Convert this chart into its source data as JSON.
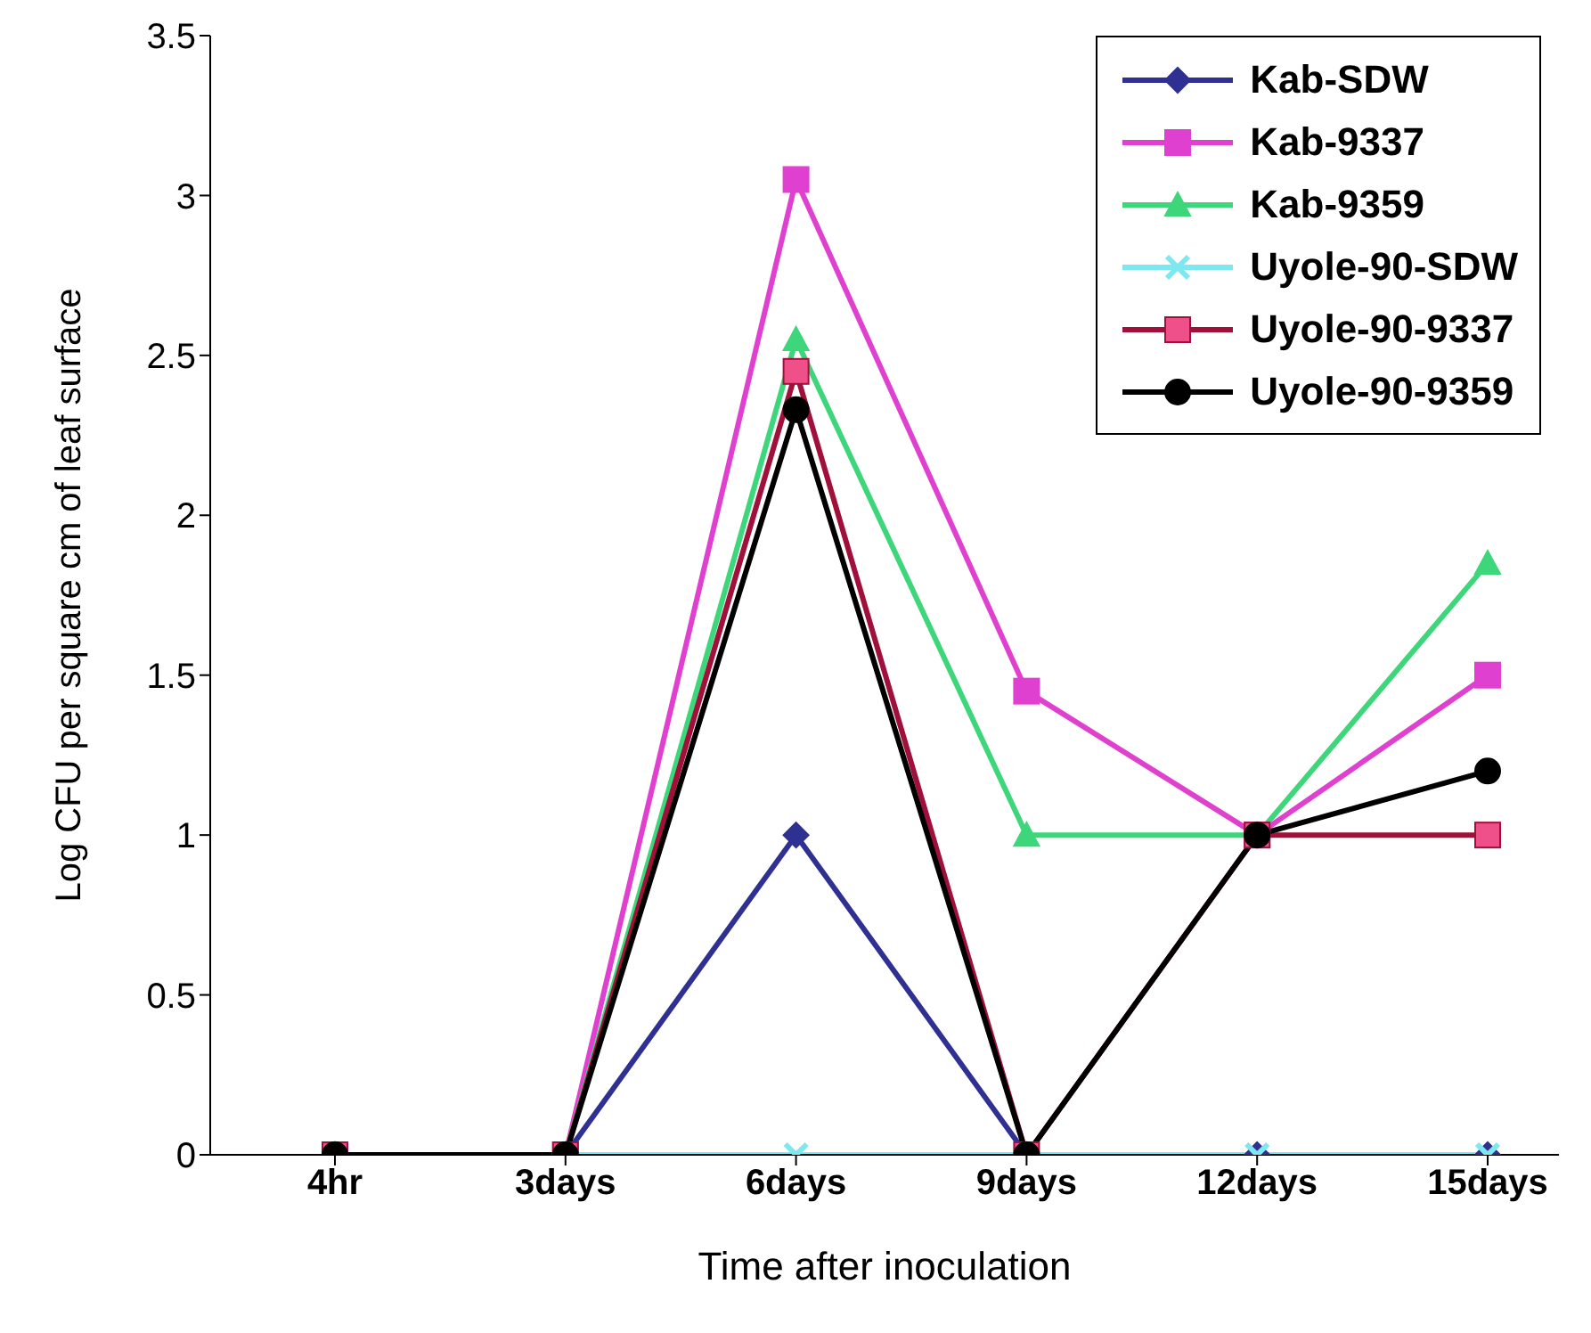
{
  "chart_data": {
    "type": "line",
    "xlabel": "Time after inoculation",
    "ylabel": "Log CFU per square cm of leaf surface",
    "categories": [
      "4hr",
      "3days",
      "6days",
      "9days",
      "12days",
      "15days"
    ],
    "series": [
      {
        "name": "Kab-SDW",
        "color": "#2e3192",
        "marker": "diamond",
        "values": [
          0,
          0,
          1,
          0,
          0,
          0
        ]
      },
      {
        "name": "Kab-9337",
        "color": "#e040d0",
        "marker": "square",
        "values": [
          0,
          0,
          3.05,
          1.45,
          1,
          1.5
        ]
      },
      {
        "name": "Kab-9359",
        "color": "#3ed67a",
        "marker": "triangle",
        "values": [
          0,
          0,
          2.55,
          1,
          1,
          1.85
        ]
      },
      {
        "name": "Uyole-90-SDW",
        "color": "#7ee8f0",
        "marker": "cross",
        "values": [
          0,
          0,
          0,
          0,
          0,
          0
        ]
      },
      {
        "name": "Uyole-90-9337",
        "color": "#a0103a",
        "marker": "square",
        "values": [
          0,
          0,
          2.45,
          0,
          1,
          1
        ]
      },
      {
        "name": "Uyole-90-9359",
        "color": "#000000",
        "marker": "circle",
        "values": [
          0,
          0,
          2.33,
          0,
          1,
          1.2
        ]
      }
    ],
    "ylim": [
      0,
      3.5
    ],
    "yticks": [
      0,
      0.5,
      1,
      1.5,
      2,
      2.5,
      3,
      3.5
    ],
    "grid": false,
    "legend": "top right",
    "line_style": "solid"
  }
}
